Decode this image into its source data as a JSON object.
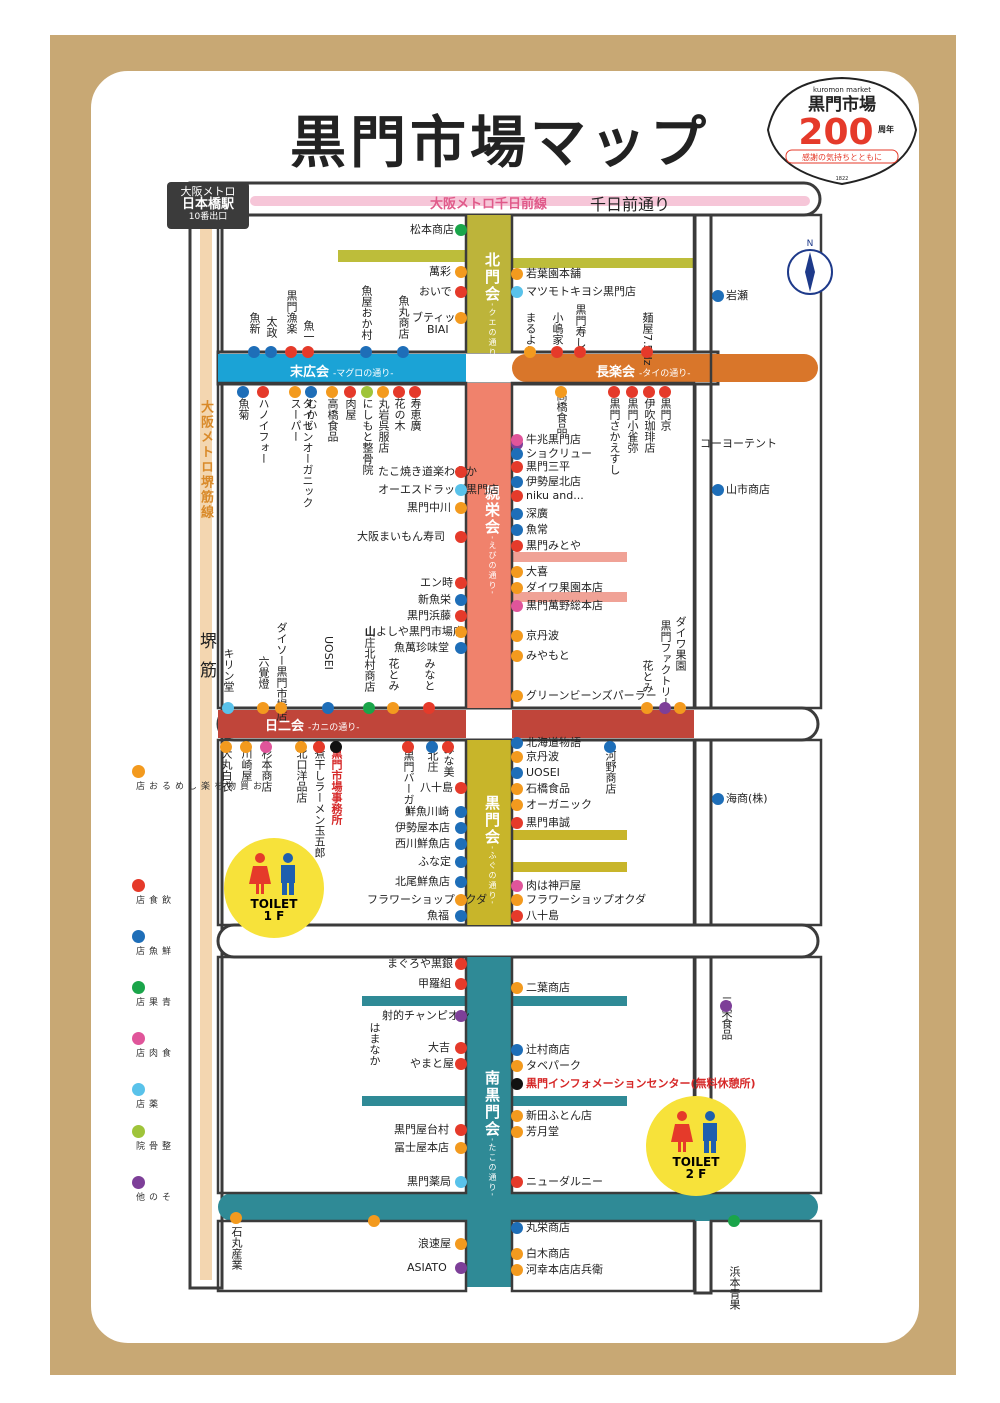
{
  "title": "黒門市場マップ",
  "badge": {
    "top": "kuromon market",
    "name": "黒門市場",
    "num": "200",
    "suffix": "周年",
    "sub": "感謝の気持ちとともに",
    "year": "1822"
  },
  "station": {
    "l1": "大阪メトロ",
    "l2": "日本橋駅",
    "l3": "10番出口"
  },
  "metro_sennichimae": "大阪メトロ千日前線",
  "sennichimae_dori": "千日前通り",
  "metro_sakaisuji": "大阪メトロ堺筋線",
  "sakaisuji": "堺筋",
  "compass_n": "N",
  "streets": {
    "suehiro": {
      "name": "末広会",
      "sub": "-マグロの通り-"
    },
    "chorakukai": {
      "name": "長楽会",
      "sub": "-タイの通り-"
    },
    "nichinikai": {
      "name": "日二会",
      "sub": "-カニの通り-"
    }
  },
  "assocs": {
    "kitamon": {
      "name": "北門会",
      "sub": "-クエの通り-"
    },
    "shinei": {
      "name": "親栄会",
      "sub": "-えびの通り-"
    },
    "kuromon": {
      "name": "黒門会",
      "sub": "-ふぐの通り-"
    },
    "minami": {
      "name": "南黒門会",
      "sub": "-たこの通り-"
    }
  },
  "toilets": {
    "t1": "TOILET\n1F",
    "t1a": "TOILET",
    "t1b": "1 F",
    "t2a": "TOILET",
    "t2b": "2 F"
  },
  "colors": {
    "orange": "#f39a1e",
    "red": "#e53a2a",
    "blue": "#1e6eb8",
    "green": "#1aa54a",
    "pink": "#e0559a",
    "lightblue": "#59c2ea",
    "yellowgreen": "#9fc43a",
    "purple": "#7d3f98",
    "black": "#111111"
  },
  "legend": [
    {
      "color": "orange",
      "label": "お買物を楽しめるお店"
    },
    {
      "color": "red",
      "label": "飲食店"
    },
    {
      "color": "blue",
      "label": "鮮魚店"
    },
    {
      "color": "green",
      "label": "青果店"
    },
    {
      "color": "pink",
      "label": "食肉店"
    },
    {
      "color": "lightblue",
      "label": "薬店"
    },
    {
      "color": "yellowgreen",
      "label": "整骨院"
    },
    {
      "color": "purple",
      "label": "その他"
    }
  ],
  "labels_h": [
    {
      "t": "松本商店",
      "c": "green",
      "side": "L"
    },
    {
      "t": "萬彩",
      "c": "orange",
      "side": "L"
    },
    {
      "t": "おいで",
      "c": "red",
      "side": "L"
    },
    {
      "t": "ブティック",
      "c": "orange",
      "side": "L"
    },
    {
      "t": "BIAI",
      "c": "",
      "side": "L"
    },
    {
      "t": "若葉園本舗",
      "c": "orange",
      "side": "R"
    },
    {
      "t": "マツモトキヨシ黒門店",
      "c": "lightblue",
      "side": "R"
    },
    {
      "t": "岩瀬",
      "c": "blue",
      "side": "R"
    },
    {
      "t": "コーヨーテント",
      "c": "purple",
      "side": "R"
    },
    {
      "t": "山市商店",
      "c": "blue",
      "side": "R"
    },
    {
      "t": "牛兆黒門店",
      "c": "pink",
      "side": "R"
    },
    {
      "t": "ショクリュー",
      "c": "blue",
      "side": "R"
    },
    {
      "t": "黒門三平",
      "c": "red",
      "side": "R"
    },
    {
      "t": "伊勢屋北店",
      "c": "blue",
      "side": "R"
    },
    {
      "t": "niku and...",
      "c": "red",
      "side": "R"
    },
    {
      "t": "深廣",
      "c": "blue",
      "side": "R"
    },
    {
      "t": "魚常",
      "c": "blue",
      "side": "R"
    },
    {
      "t": "黒門みとや",
      "c": "red",
      "side": "R"
    },
    {
      "t": "大喜",
      "c": "orange",
      "side": "R"
    },
    {
      "t": "ダイワ果園本店",
      "c": "orange",
      "side": "R"
    },
    {
      "t": "黒門萬野総本店",
      "c": "pink",
      "side": "R"
    },
    {
      "t": "京丹波",
      "c": "orange",
      "side": "R"
    },
    {
      "t": "みやもと",
      "c": "orange",
      "side": "R"
    },
    {
      "t": "グリーンビーンズパーラー",
      "c": "orange",
      "side": "R"
    },
    {
      "t": "たこ焼き道楽わなか",
      "c": "red",
      "side": "L"
    },
    {
      "t": "オーエスドラッグ黒門店",
      "c": "lightblue",
      "side": "L"
    },
    {
      "t": "黒門中川",
      "c": "orange",
      "side": "L"
    },
    {
      "t": "大阪まいもん寿司",
      "c": "red",
      "side": "L"
    },
    {
      "t": "エン時",
      "c": "red",
      "side": "L"
    },
    {
      "t": "新魚栄",
      "c": "blue",
      "side": "L"
    },
    {
      "t": "黒門浜藤",
      "c": "red",
      "side": "L"
    },
    {
      "t": "山よしや黒門市場店",
      "c": "orange",
      "side": "L"
    },
    {
      "t": "魚萬珍味堂",
      "c": "blue",
      "side": "L"
    },
    {
      "t": "北海道物語",
      "c": "blue",
      "side": "R"
    },
    {
      "t": "京丹波",
      "c": "orange",
      "side": "R"
    },
    {
      "t": "UOSEI",
      "c": "blue",
      "side": "R"
    },
    {
      "t": "石橋食品",
      "c": "orange",
      "side": "R"
    },
    {
      "t": "オーガニック",
      "c": "orange",
      "side": "R"
    },
    {
      "t": "黒門串誠",
      "c": "red",
      "side": "R"
    },
    {
      "t": "肉は神戸屋",
      "c": "pink",
      "side": "R"
    },
    {
      "t": "フラワーショップオクダ",
      "c": "orange",
      "side": "R"
    },
    {
      "t": "八十島",
      "c": "red",
      "side": "R"
    },
    {
      "t": "海商(株)",
      "c": "blue",
      "side": "R"
    },
    {
      "t": "八十島",
      "c": "red",
      "side": "L"
    },
    {
      "t": "鮮魚川崎",
      "c": "blue",
      "side": "L"
    },
    {
      "t": "伊勢屋本店",
      "c": "blue",
      "side": "L"
    },
    {
      "t": "西川鮮魚店",
      "c": "blue",
      "side": "L"
    },
    {
      "t": "ふな定",
      "c": "blue",
      "side": "L"
    },
    {
      "t": "北尾鮮魚店",
      "c": "blue",
      "side": "L"
    },
    {
      "t": "フラワーショップオクダ",
      "c": "orange",
      "side": "L"
    },
    {
      "t": "魚福",
      "c": "blue",
      "side": "L"
    },
    {
      "t": "まぐろや黒銀",
      "c": "red",
      "side": "L"
    },
    {
      "t": "甲羅組",
      "c": "red",
      "side": "L"
    },
    {
      "t": "射的チャンピオン",
      "c": "purple",
      "side": "L"
    },
    {
      "t": "大吉",
      "c": "red",
      "side": "L"
    },
    {
      "t": "やまと屋",
      "c": "red",
      "side": "L"
    },
    {
      "t": "黒門屋台村",
      "c": "red",
      "side": "L"
    },
    {
      "t": "冨士屋本店",
      "c": "orange",
      "side": "L"
    },
    {
      "t": "黒門薬局",
      "c": "lightblue",
      "side": "L"
    },
    {
      "t": "浪速屋",
      "c": "orange",
      "side": "L"
    },
    {
      "t": "ASIATO",
      "c": "purple",
      "side": "L"
    },
    {
      "t": "二葉商店",
      "c": "orange",
      "side": "R"
    },
    {
      "t": "辻村商店",
      "c": "blue",
      "side": "R"
    },
    {
      "t": "タベパーク",
      "c": "orange",
      "side": "R"
    },
    {
      "t": "黒門インフォメーションセンター(無料休憩所)",
      "c": "black",
      "side": "R"
    },
    {
      "t": "新田ふとん店",
      "c": "orange",
      "side": "R"
    },
    {
      "t": "芳月堂",
      "c": "orange",
      "side": "R"
    },
    {
      "t": "ニューダルニー",
      "c": "red",
      "side": "R"
    },
    {
      "t": "丸栄商店",
      "c": "blue",
      "side": "R"
    },
    {
      "t": "白木商店",
      "c": "orange",
      "side": "R"
    },
    {
      "t": "河幸本店店兵衛",
      "c": "orange",
      "side": "R"
    }
  ],
  "labels_v": [
    {
      "t": "魚新",
      "c": "blue"
    },
    {
      "t": "太政",
      "c": "blue"
    },
    {
      "t": "黒門漁楽",
      "c": "red"
    },
    {
      "t": "魚一",
      "c": "red"
    },
    {
      "t": "魚屋おか村",
      "c": "blue"
    },
    {
      "t": "魚丸商店",
      "c": "blue"
    },
    {
      "t": "まるよし",
      "c": "orange"
    },
    {
      "t": "小嶋家",
      "c": "red"
    },
    {
      "t": "黒門寿し",
      "c": "red"
    },
    {
      "t": "麺屋7.5Hz",
      "c": "red"
    },
    {
      "t": "魚菊",
      "c": "blue"
    },
    {
      "t": "ハノイフォー",
      "c": "red"
    },
    {
      "t": "タイゼンオーガニックスーパー",
      "c": "orange"
    },
    {
      "t": "むかい",
      "c": "blue"
    },
    {
      "t": "高橋食品",
      "c": "orange"
    },
    {
      "t": "肉屋",
      "c": "red"
    },
    {
      "t": "にしもと整骨院",
      "c": "yellowgreen"
    },
    {
      "t": "丸岩呉服店",
      "c": "orange"
    },
    {
      "t": "花の木",
      "c": "red"
    },
    {
      "t": "寿恵廣",
      "c": "red"
    },
    {
      "t": "高橋食品",
      "c": "orange"
    },
    {
      "t": "黒門さかえすし",
      "c": "red"
    },
    {
      "t": "黒門小雀弥",
      "c": "red"
    },
    {
      "t": "伊吹珈琲店",
      "c": "red"
    },
    {
      "t": "黒門京",
      "c": "red"
    },
    {
      "t": "キリン堂",
      "c": "lightblue"
    },
    {
      "t": "六覺燈",
      "c": "orange"
    },
    {
      "t": "ダイソー黒門市場店",
      "c": "orange"
    },
    {
      "t": "UOSEI",
      "c": "blue"
    },
    {
      "t": "山庄北村商店",
      "c": "green"
    },
    {
      "t": "花とみ",
      "c": "orange"
    },
    {
      "t": "みなと",
      "c": "red"
    },
    {
      "t": "花とみ",
      "c": "orange"
    },
    {
      "t": "黒門ファクトリー",
      "c": "purple"
    },
    {
      "t": "ダイワ果園",
      "c": "orange"
    },
    {
      "t": "大丸白衣",
      "c": "orange"
    },
    {
      "t": "川崎屋",
      "c": "orange"
    },
    {
      "t": "杉本商店",
      "c": "pink"
    },
    {
      "t": "北口洋品店",
      "c": "orange"
    },
    {
      "t": "煮干しラーメン玉五郎",
      "c": "red"
    },
    {
      "t": "黒門市場事務所",
      "c": "black"
    },
    {
      "t": "黒門バーガー",
      "c": "red"
    },
    {
      "t": "北庄",
      "c": "blue"
    },
    {
      "t": "みな美",
      "c": "red"
    },
    {
      "t": "河野商店",
      "c": "blue"
    },
    {
      "t": "はまなか",
      "c": "orange"
    },
    {
      "t": "石丸産業",
      "c": "orange"
    },
    {
      "t": "三栄食品",
      "c": "purple"
    },
    {
      "t": "浜本青果",
      "c": "green"
    }
  ]
}
